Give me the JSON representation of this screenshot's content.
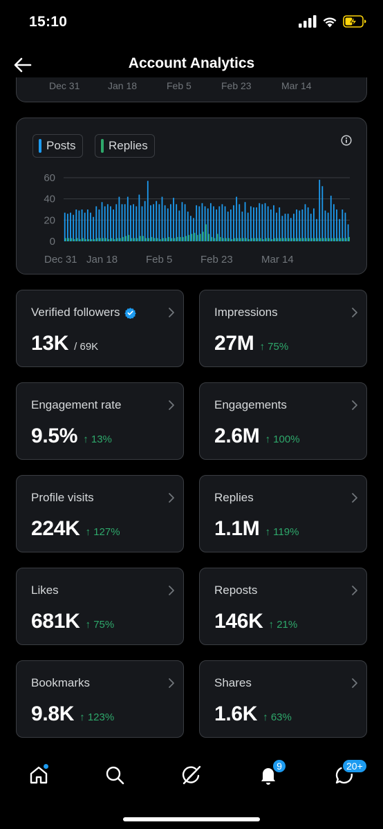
{
  "status_bar": {
    "time": "15:10"
  },
  "header": {
    "title": "Account Analytics"
  },
  "top_card": {
    "x_labels": [
      "Dec 31",
      "Jan 18",
      "Feb 5",
      "Feb 23",
      "Mar 14"
    ]
  },
  "chart": {
    "legend": {
      "posts": "Posts",
      "replies": "Replies"
    },
    "colors": {
      "posts": "#1d9bf0",
      "replies": "#2ea86b"
    }
  },
  "chart_data": {
    "type": "bar",
    "x_tick_labels": [
      "Dec 31",
      "Jan 18",
      "Feb 5",
      "Feb 23",
      "Mar 14"
    ],
    "y_ticks": [
      0,
      20,
      40,
      60
    ],
    "ylim": [
      0,
      60
    ],
    "grid": true,
    "legend_placement": "top-left",
    "series": [
      {
        "name": "Posts",
        "values": [
          27,
          26,
          27,
          25,
          30,
          29,
          30,
          27,
          30,
          27,
          23,
          33,
          30,
          37,
          33,
          35,
          33,
          30,
          35,
          42,
          35,
          35,
          42,
          34,
          35,
          33,
          44,
          33,
          38,
          57,
          34,
          35,
          38,
          35,
          42,
          34,
          31,
          35,
          41,
          35,
          29,
          37,
          35,
          28,
          24,
          22,
          34,
          33,
          36,
          33,
          31,
          36,
          33,
          30,
          33,
          35,
          33,
          28,
          30,
          34,
          42,
          35,
          28,
          37,
          27,
          33,
          32,
          32,
          36,
          35,
          36,
          33,
          30,
          34,
          27,
          32,
          24,
          26,
          26,
          22,
          26,
          30,
          29,
          30,
          35,
          32,
          26,
          31,
          21,
          58,
          52,
          29,
          27,
          43,
          35,
          30,
          21,
          30,
          27,
          16
        ]
      },
      {
        "name": "Replies",
        "values": [
          3,
          3,
          3,
          2,
          3,
          2,
          3,
          2,
          2,
          2,
          2,
          3,
          3,
          3,
          3,
          2,
          3,
          2,
          3,
          3,
          4,
          5,
          6,
          3,
          3,
          3,
          5,
          5,
          3,
          3,
          4,
          3,
          3,
          2,
          3,
          3,
          4,
          3,
          3,
          4,
          4,
          4,
          5,
          6,
          7,
          8,
          6,
          7,
          9,
          16,
          7,
          4,
          3,
          7,
          4,
          3,
          3,
          3,
          2,
          3,
          3,
          3,
          3,
          3,
          2,
          3,
          3,
          3,
          3,
          2,
          3,
          3,
          2,
          3,
          3,
          3,
          3,
          3,
          3,
          3,
          3,
          3,
          3,
          3,
          3,
          3,
          3,
          3,
          3,
          3,
          3,
          3,
          3,
          3,
          3,
          3,
          3,
          3,
          3,
          4
        ]
      }
    ]
  },
  "metrics": [
    {
      "label": "Verified followers",
      "value": "13K",
      "sub": "/ 69K",
      "change": ""
    },
    {
      "label": "Impressions",
      "value": "27M",
      "sub": "",
      "change": "↑ 75%"
    },
    {
      "label": "Engagement rate",
      "value": "9.5%",
      "sub": "",
      "change": "↑ 13%"
    },
    {
      "label": "Engagements",
      "value": "2.6M",
      "sub": "",
      "change": "↑ 100%"
    },
    {
      "label": "Profile visits",
      "value": "224K",
      "sub": "",
      "change": "↑ 127%"
    },
    {
      "label": "Replies",
      "value": "1.1M",
      "sub": "",
      "change": "↑ 119%"
    },
    {
      "label": "Likes",
      "value": "681K",
      "sub": "",
      "change": "↑ 75%"
    },
    {
      "label": "Reposts",
      "value": "146K",
      "sub": "",
      "change": "↑ 21%"
    },
    {
      "label": "Bookmarks",
      "value": "9.8K",
      "sub": "",
      "change": "↑ 123%"
    },
    {
      "label": "Shares",
      "value": "1.6K",
      "sub": "",
      "change": "↑ 63%"
    }
  ],
  "tabbar": {
    "notifications_badge": "9",
    "messages_badge": "20+"
  }
}
